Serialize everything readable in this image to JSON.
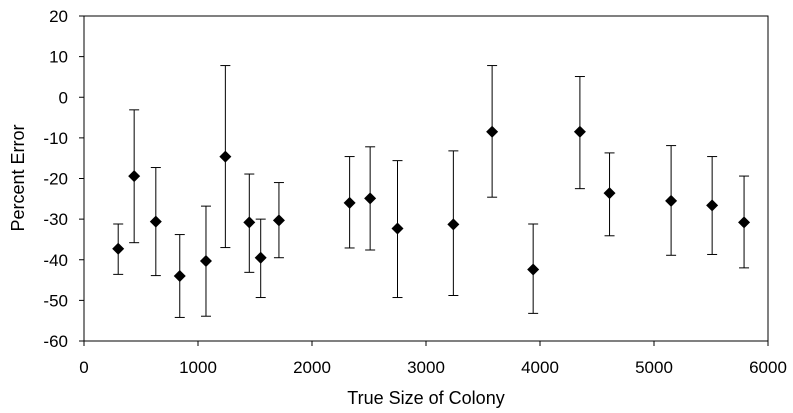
{
  "chart_data": {
    "type": "scatter",
    "title": "",
    "xlabel": "True Size of Colony",
    "ylabel": "Percent Error",
    "xlim": [
      0,
      6000
    ],
    "ylim": [
      -60,
      20
    ],
    "xticks": [
      0,
      1000,
      2000,
      3000,
      4000,
      5000,
      6000
    ],
    "yticks": [
      -60,
      -50,
      -40,
      -30,
      -20,
      -10,
      0,
      10,
      20
    ],
    "grid": false,
    "legend": "none",
    "marker": "diamond",
    "marker_color": "#000000",
    "error_bars": true,
    "points": [
      {
        "x": 300,
        "y": -37.3,
        "lo": -43.6,
        "hi": -31.2
      },
      {
        "x": 440,
        "y": -19.4,
        "lo": -35.8,
        "hi": -3.1
      },
      {
        "x": 630,
        "y": -30.6,
        "lo": -43.9,
        "hi": -17.3
      },
      {
        "x": 840,
        "y": -44.0,
        "lo": -54.2,
        "hi": -33.8
      },
      {
        "x": 1070,
        "y": -40.3,
        "lo": -53.9,
        "hi": -26.8
      },
      {
        "x": 1240,
        "y": -14.6,
        "lo": -37.0,
        "hi": 7.8
      },
      {
        "x": 1450,
        "y": -30.8,
        "lo": -43.1,
        "hi": -18.9
      },
      {
        "x": 1550,
        "y": -39.5,
        "lo": -49.3,
        "hi": -30.0
      },
      {
        "x": 1710,
        "y": -30.3,
        "lo": -39.5,
        "hi": -21.0
      },
      {
        "x": 2330,
        "y": -26.0,
        "lo": -37.1,
        "hi": -14.6
      },
      {
        "x": 2510,
        "y": -24.9,
        "lo": -37.6,
        "hi": -12.2
      },
      {
        "x": 2750,
        "y": -32.3,
        "lo": -49.3,
        "hi": -15.6
      },
      {
        "x": 3240,
        "y": -31.3,
        "lo": -48.8,
        "hi": -13.2
      },
      {
        "x": 3580,
        "y": -8.5,
        "lo": -24.6,
        "hi": 7.8
      },
      {
        "x": 3940,
        "y": -42.4,
        "lo": -53.2,
        "hi": -31.2
      },
      {
        "x": 4350,
        "y": -8.5,
        "lo": -22.5,
        "hi": 5.1
      },
      {
        "x": 4610,
        "y": -23.6,
        "lo": -34.1,
        "hi": -13.7
      },
      {
        "x": 5150,
        "y": -25.5,
        "lo": -38.9,
        "hi": -11.9
      },
      {
        "x": 5510,
        "y": -26.6,
        "lo": -38.7,
        "hi": -14.6
      },
      {
        "x": 5790,
        "y": -30.8,
        "lo": -42.0,
        "hi": -19.4
      }
    ]
  }
}
